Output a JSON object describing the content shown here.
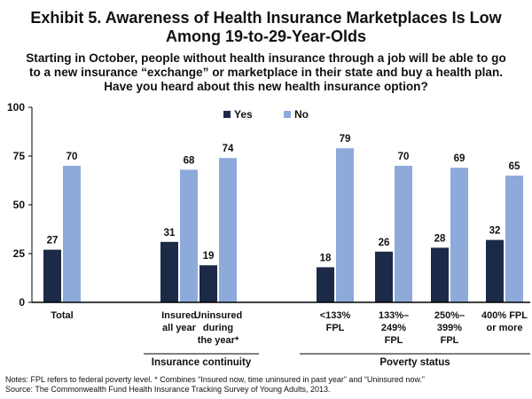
{
  "title_lines": [
    "Exhibit 5. Awareness of Health Insurance Marketplaces Is Low",
    "Among 19-to-29-Year-Olds"
  ],
  "subtitle_lines": [
    "Starting in October, people without health insurance through a job will be able to go",
    "to a new insurance “exchange” or marketplace in their state and buy a health plan.",
    "Have you heard about this new health insurance option?"
  ],
  "notes": {
    "line1": "Notes: FPL refers to federal poverty level. * Combines “Insured now, time uninsured in past year” and “Uninsured now.”",
    "line2": "Source: The Commonwealth Fund Health Insurance Tracking Survey of Young Adults, 2013."
  },
  "colors": {
    "yes": "#1c2a48",
    "no": "#8eaadb",
    "axis": "#000000"
  },
  "chart_data": {
    "type": "bar",
    "ylim": [
      0,
      100
    ],
    "yticks": [
      0,
      25,
      50,
      75,
      100
    ],
    "legend": [
      "Yes",
      "No"
    ],
    "categories": [
      {
        "label_lines": [
          "Total"
        ]
      },
      {
        "label_lines": [
          "Insured",
          "all year"
        ]
      },
      {
        "label_lines": [
          "Uninsured",
          "during",
          "the year*"
        ]
      },
      {
        "label_lines": [
          "<133%",
          "FPL"
        ]
      },
      {
        "label_lines": [
          "133%–",
          "249%",
          "FPL"
        ]
      },
      {
        "label_lines": [
          "250%–",
          "399%",
          "FPL"
        ]
      },
      {
        "label_lines": [
          "400% FPL",
          "or more"
        ]
      }
    ],
    "series": [
      {
        "name": "Yes",
        "values": [
          27,
          31,
          19,
          18,
          26,
          28,
          32
        ]
      },
      {
        "name": "No",
        "values": [
          70,
          68,
          74,
          79,
          70,
          69,
          65
        ]
      }
    ],
    "groups": [
      {
        "label": "Insurance continuity",
        "categories": [
          1,
          2
        ]
      },
      {
        "label": "Poverty status",
        "categories": [
          3,
          4,
          5,
          6
        ]
      }
    ]
  }
}
